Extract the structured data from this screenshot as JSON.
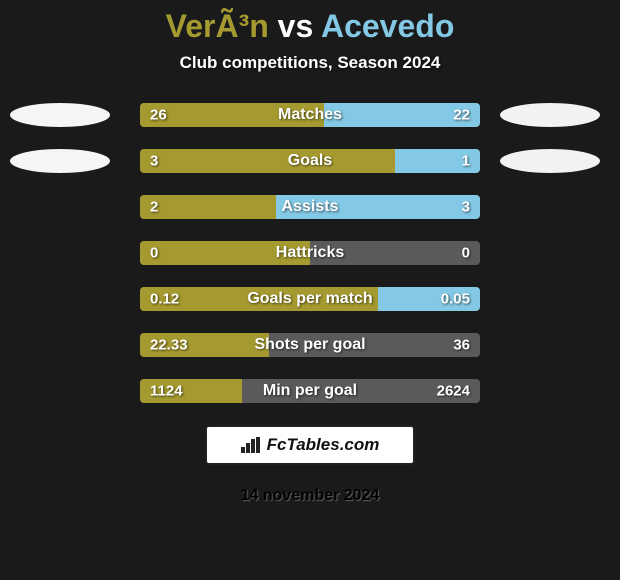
{
  "background_color": "#1a1a1a",
  "title": {
    "player1": "VerÃ³n",
    "player1_color": "#a59a2f",
    "vs": " vs ",
    "vs_color": "#ffffff",
    "player2": "Acevedo",
    "player2_color": "#83c8e4"
  },
  "subtitle": "Club competitions, Season 2024",
  "oval_left_color": "#f5f5f5",
  "oval_right_color": "#f2f2f2",
  "bar_track_color": "#5a5a5a",
  "player1_bar_color": "#a59a2f",
  "player2_bar_color": "#83c8e4",
  "rows": [
    {
      "label": "Matches",
      "left_val": "26",
      "right_val": "22",
      "left_pct": 54,
      "right_pct": 46,
      "show_ovals": true
    },
    {
      "label": "Goals",
      "left_val": "3",
      "right_val": "1",
      "left_pct": 75,
      "right_pct": 25,
      "show_ovals": true
    },
    {
      "label": "Assists",
      "left_val": "2",
      "right_val": "3",
      "left_pct": 40,
      "right_pct": 60,
      "show_ovals": false
    },
    {
      "label": "Hattricks",
      "left_val": "0",
      "right_val": "0",
      "left_pct": 50,
      "right_pct": 0,
      "show_ovals": false
    },
    {
      "label": "Goals per match",
      "left_val": "0.12",
      "right_val": "0.05",
      "left_pct": 70,
      "right_pct": 30,
      "show_ovals": false
    },
    {
      "label": "Shots per goal",
      "left_val": "22.33",
      "right_val": "36",
      "left_pct": 38,
      "right_pct": 0,
      "show_ovals": false
    },
    {
      "label": "Min per goal",
      "left_val": "1124",
      "right_val": "2624",
      "left_pct": 30,
      "right_pct": 0,
      "show_ovals": false
    }
  ],
  "footer_logo_text": "FcTables.com",
  "footer_date": "14 november 2024"
}
